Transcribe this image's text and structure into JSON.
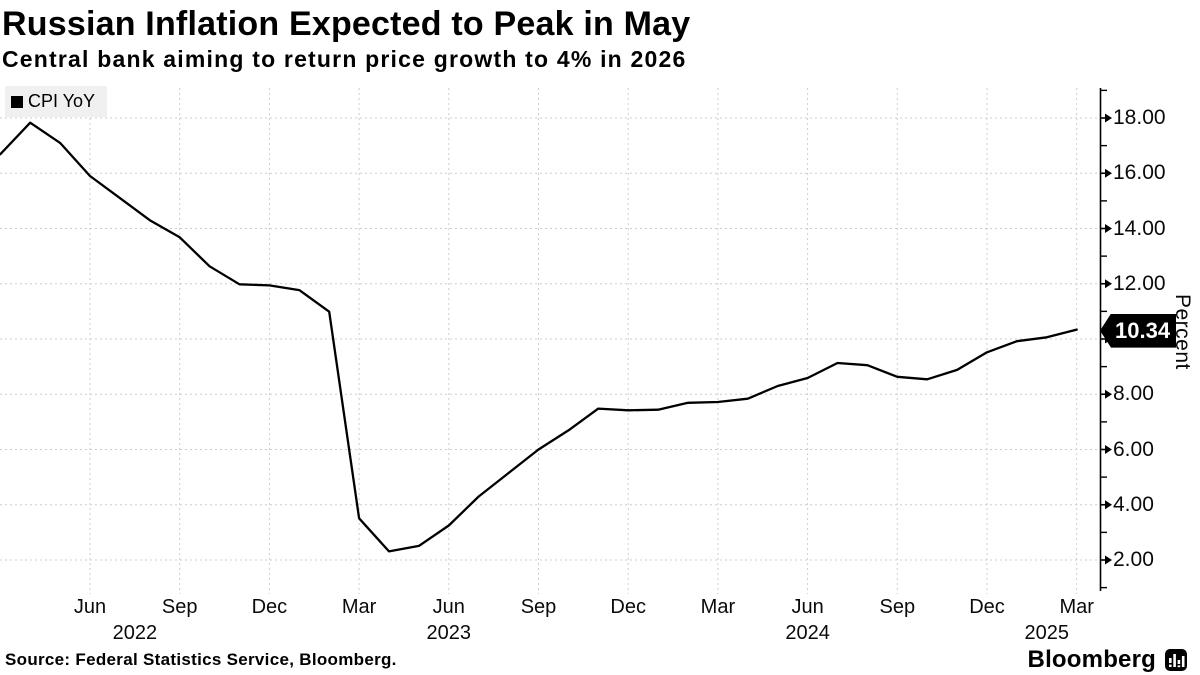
{
  "header": {
    "title": "Russian Inflation Expected to Peak in May",
    "subtitle": "Central bank aiming to return price growth to 4% in 2026"
  },
  "legend": {
    "label": "CPI YoY",
    "swatch_color": "#000000"
  },
  "chart_data": {
    "type": "line",
    "title": "Russian Inflation Expected to Peak in May",
    "ylabel": "Percent",
    "xlabel": "",
    "grid": true,
    "legend_position": "top-left",
    "ylim": [
      0.9,
      19.0
    ],
    "series": [
      {
        "name": "CPI YoY",
        "color": "#000000",
        "x": [
          "2022-03",
          "2022-04",
          "2022-05",
          "2022-06",
          "2022-07",
          "2022-08",
          "2022-09",
          "2022-10",
          "2022-11",
          "2022-12",
          "2023-01",
          "2023-02",
          "2023-03",
          "2023-04",
          "2023-05",
          "2023-06",
          "2023-07",
          "2023-08",
          "2023-09",
          "2023-10",
          "2023-11",
          "2023-12",
          "2024-01",
          "2024-02",
          "2024-03",
          "2024-04",
          "2024-05",
          "2024-06",
          "2024-07",
          "2024-08",
          "2024-09",
          "2024-10",
          "2024-11",
          "2024-12",
          "2025-01",
          "2025-02",
          "2025-03"
        ],
        "values": [
          16.69,
          17.83,
          17.1,
          15.9,
          15.1,
          14.3,
          13.68,
          12.63,
          11.98,
          11.94,
          11.77,
          10.99,
          3.51,
          2.31,
          2.51,
          3.25,
          4.3,
          5.15,
          6.0,
          6.69,
          7.48,
          7.42,
          7.44,
          7.69,
          7.72,
          7.84,
          8.3,
          8.59,
          9.13,
          9.05,
          8.63,
          8.54,
          8.88,
          9.52,
          9.92,
          10.06,
          10.34
        ]
      }
    ],
    "y_ticks": [
      2,
      4,
      6,
      8,
      10,
      12,
      14,
      16,
      18
    ],
    "y_tick_labels": [
      "2.00",
      "4.00",
      "6.00",
      "8.00",
      "10.00",
      "12.00",
      "14.00",
      "16.00",
      "18.00"
    ],
    "y_minor_ticks": [
      1,
      3,
      5,
      7,
      9,
      11,
      13,
      15,
      17,
      19
    ],
    "x_ticks": [
      {
        "label": "Jun",
        "month_index": 3
      },
      {
        "label": "Sep",
        "month_index": 6
      },
      {
        "label": "Dec",
        "month_index": 9
      },
      {
        "label": "Mar",
        "month_index": 12
      },
      {
        "label": "Jun",
        "month_index": 15
      },
      {
        "label": "Sep",
        "month_index": 18
      },
      {
        "label": "Dec",
        "month_index": 21
      },
      {
        "label": "Mar",
        "month_index": 24
      },
      {
        "label": "Jun",
        "month_index": 27
      },
      {
        "label": "Sep",
        "month_index": 30
      },
      {
        "label": "Dec",
        "month_index": 33
      },
      {
        "label": "Mar",
        "month_index": 36
      }
    ],
    "year_labels": [
      {
        "label": "2022",
        "month_index": 4.5
      },
      {
        "label": "2023",
        "month_index": 15
      },
      {
        "label": "2024",
        "month_index": 27
      },
      {
        "label": "2025",
        "month_index": 35
      }
    ],
    "last_value_label": "10.34"
  },
  "footer": {
    "source": "Source: Federal Statistics Service, Bloomberg.",
    "brand": "Bloomberg",
    "brand_icon": "bloomberg-terminal-icon"
  },
  "colors": {
    "background": "#ffffff",
    "line": "#000000",
    "grid": "#cccccc",
    "axis": "#000000",
    "legend_bg": "#f0f0f0",
    "tag_bg": "#000000",
    "tag_text": "#ffffff"
  }
}
